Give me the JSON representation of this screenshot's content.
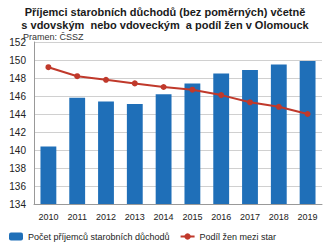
{
  "chart_data": {
    "type": "bar",
    "title": "Příjemci starobních důchodů (bez poměrných) včetně\ns vdovským  nebo vdoveckým  a podíl žen v Olomouck",
    "annotations": [
      "Pramen: ČSSZ"
    ],
    "categories": [
      "2010",
      "2011",
      "2012",
      "2013",
      "2014",
      "2015",
      "2016",
      "2017",
      "2018",
      "2019"
    ],
    "series": [
      {
        "name": "Počet příjemců starobních důchodů",
        "type": "bar",
        "color": "#1f6fb8",
        "values": [
          140.4,
          145.8,
          145.4,
          145.1,
          146.2,
          147.4,
          148.5,
          148.9,
          149.5,
          149.9
        ]
      },
      {
        "name": "Podíl žen mezi star",
        "type": "line",
        "color": "#c0392b",
        "marker": "circle",
        "values": [
          149.2,
          148.2,
          147.8,
          147.4,
          147.0,
          146.7,
          146.1,
          145.3,
          144.8,
          144.0
        ]
      }
    ],
    "ylim": [
      134,
      152
    ],
    "yticks": [
      134,
      136,
      138,
      140,
      142,
      144,
      146,
      148,
      150,
      152
    ],
    "grid": true,
    "legend": "bottom"
  }
}
